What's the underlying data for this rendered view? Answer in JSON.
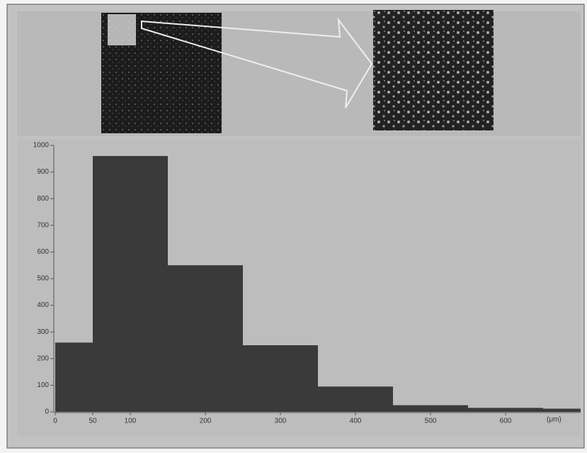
{
  "chart_data": {
    "type": "histogram",
    "bins": [
      0,
      50,
      150,
      250,
      350,
      450,
      550,
      650,
      700
    ],
    "values": [
      260,
      960,
      550,
      250,
      95,
      25,
      15,
      12
    ],
    "color": "#3a3a3a",
    "xlim": [
      0,
      700
    ],
    "xticks": [
      0,
      50,
      100,
      200,
      300,
      400,
      500,
      600
    ],
    "xlabel": "(μm)",
    "ylim": [
      0,
      1000
    ],
    "yticks": [
      0,
      100,
      200,
      300,
      400,
      500,
      600,
      700,
      800,
      900,
      1000
    ]
  }
}
